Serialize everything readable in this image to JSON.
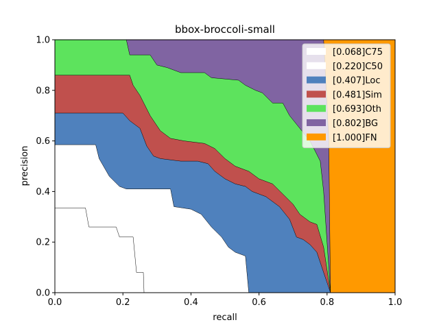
{
  "chart_data": {
    "type": "area",
    "title": "bbox-broccoli-small",
    "xlabel": "recall",
    "ylabel": "precision",
    "xlim": [
      0,
      1
    ],
    "ylim": [
      0,
      1
    ],
    "xticks": [
      "0.0",
      "0.2",
      "0.4",
      "0.6",
      "0.8",
      "1.0"
    ],
    "yticks": [
      "0.0",
      "0.2",
      "0.4",
      "0.6",
      "0.8",
      "1.0"
    ],
    "grid": false,
    "legend_position": "upper-right",
    "series": [
      {
        "name": "[1.000]FN",
        "color": "#ff9900",
        "points": [
          [
            0,
            1
          ],
          [
            1,
            1
          ]
        ]
      },
      {
        "name": "[0.802]BG",
        "color": "#8064a2",
        "points": [
          [
            0,
            1
          ],
          [
            0.79,
            1
          ],
          [
            0.805,
            0.6
          ],
          [
            0.81,
            0
          ]
        ]
      },
      {
        "name": "[0.693]Oth",
        "color": "#5de35d",
        "points": [
          [
            0,
            1
          ],
          [
            0.21,
            1
          ],
          [
            0.22,
            0.94
          ],
          [
            0.28,
            0.94
          ],
          [
            0.3,
            0.9
          ],
          [
            0.33,
            0.89
          ],
          [
            0.37,
            0.87
          ],
          [
            0.44,
            0.87
          ],
          [
            0.46,
            0.85
          ],
          [
            0.54,
            0.84
          ],
          [
            0.56,
            0.82
          ],
          [
            0.59,
            0.8
          ],
          [
            0.61,
            0.79
          ],
          [
            0.64,
            0.75
          ],
          [
            0.67,
            0.75
          ],
          [
            0.69,
            0.7
          ],
          [
            0.72,
            0.65
          ],
          [
            0.75,
            0.6
          ],
          [
            0.78,
            0.52
          ],
          [
            0.79,
            0.4
          ],
          [
            0.8,
            0.2
          ],
          [
            0.81,
            0
          ]
        ]
      },
      {
        "name": "[0.481]Sim",
        "color": "#c0504d",
        "points": [
          [
            0,
            0.86
          ],
          [
            0.22,
            0.86
          ],
          [
            0.23,
            0.82
          ],
          [
            0.25,
            0.78
          ],
          [
            0.28,
            0.7
          ],
          [
            0.31,
            0.64
          ],
          [
            0.34,
            0.61
          ],
          [
            0.38,
            0.6
          ],
          [
            0.44,
            0.59
          ],
          [
            0.47,
            0.57
          ],
          [
            0.5,
            0.53
          ],
          [
            0.53,
            0.5
          ],
          [
            0.57,
            0.48
          ],
          [
            0.6,
            0.45
          ],
          [
            0.64,
            0.43
          ],
          [
            0.67,
            0.39
          ],
          [
            0.7,
            0.35
          ],
          [
            0.72,
            0.31
          ],
          [
            0.75,
            0.28
          ],
          [
            0.77,
            0.27
          ],
          [
            0.79,
            0.18
          ],
          [
            0.81,
            0
          ]
        ]
      },
      {
        "name": "[0.407]Loc",
        "color": "#4f81bd",
        "points": [
          [
            0,
            0.71
          ],
          [
            0.2,
            0.71
          ],
          [
            0.22,
            0.68
          ],
          [
            0.25,
            0.65
          ],
          [
            0.27,
            0.58
          ],
          [
            0.29,
            0.54
          ],
          [
            0.31,
            0.53
          ],
          [
            0.37,
            0.52
          ],
          [
            0.42,
            0.52
          ],
          [
            0.45,
            0.51
          ],
          [
            0.47,
            0.48
          ],
          [
            0.5,
            0.45
          ],
          [
            0.53,
            0.43
          ],
          [
            0.56,
            0.42
          ],
          [
            0.58,
            0.4
          ],
          [
            0.62,
            0.38
          ],
          [
            0.66,
            0.34
          ],
          [
            0.69,
            0.29
          ],
          [
            0.71,
            0.22
          ],
          [
            0.73,
            0.21
          ],
          [
            0.75,
            0.19
          ],
          [
            0.77,
            0.16
          ],
          [
            0.79,
            0.08
          ],
          [
            0.81,
            0
          ]
        ]
      },
      {
        "name": "[0.220]C50",
        "color": "#ffffff",
        "points": [
          [
            0,
            0.585
          ],
          [
            0.12,
            0.585
          ],
          [
            0.13,
            0.53
          ],
          [
            0.16,
            0.46
          ],
          [
            0.19,
            0.42
          ],
          [
            0.21,
            0.41
          ],
          [
            0.34,
            0.41
          ],
          [
            0.35,
            0.34
          ],
          [
            0.4,
            0.33
          ],
          [
            0.43,
            0.31
          ],
          [
            0.46,
            0.26
          ],
          [
            0.49,
            0.22
          ],
          [
            0.51,
            0.18
          ],
          [
            0.53,
            0.16
          ],
          [
            0.56,
            0.145
          ],
          [
            0.57,
            0
          ]
        ]
      },
      {
        "name": "[0.068]C75",
        "color": "#ffffff",
        "points": [
          [
            0,
            0.335
          ],
          [
            0.09,
            0.335
          ],
          [
            0.1,
            0.26
          ],
          [
            0.18,
            0.26
          ],
          [
            0.19,
            0.22
          ],
          [
            0.23,
            0.22
          ],
          [
            0.24,
            0.08
          ],
          [
            0.26,
            0.08
          ],
          [
            0.262,
            0
          ]
        ]
      }
    ]
  }
}
